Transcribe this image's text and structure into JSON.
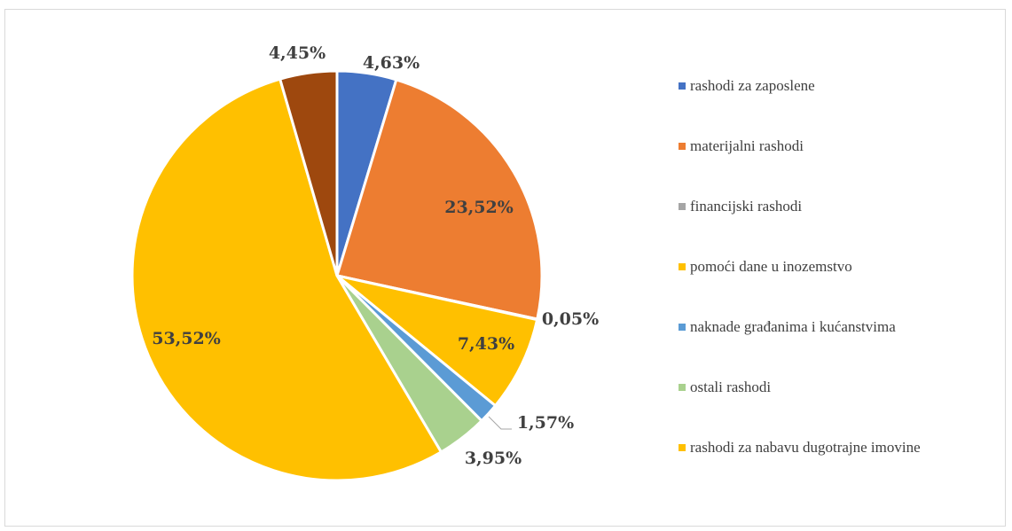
{
  "chart_data": {
    "type": "pie",
    "slices": [
      {
        "name": "rashodi za zaposlene",
        "value": 4.63,
        "label": "4,63%",
        "color": "#4472C4"
      },
      {
        "name": "materijalni rashodi",
        "value": 23.52,
        "label": "23,52%",
        "color": "#ED7D31"
      },
      {
        "name": "financijski rashodi",
        "value": 0.05,
        "label": "0,05%",
        "color": "#A5A5A5"
      },
      {
        "name": "pomoći dane u inozemstvo",
        "value": 7.43,
        "label": "7,43%",
        "color": "#FFC000"
      },
      {
        "name": "naknade građanima i kućanstvima",
        "value": 1.57,
        "label": "1,57%",
        "color": "#5B9BD5"
      },
      {
        "name": "ostali rashodi",
        "value": 3.95,
        "label": "3,95%",
        "color": "#A9D18E"
      },
      {
        "name": "rashodi za nabavu dugotrajne imovine",
        "value": 53.52,
        "label": "53,52%",
        "color": "#FFC000"
      },
      {
        "name": "",
        "value": 4.45,
        "label": "4,45%",
        "color": "#9E480E"
      }
    ],
    "legend_position": "right"
  }
}
